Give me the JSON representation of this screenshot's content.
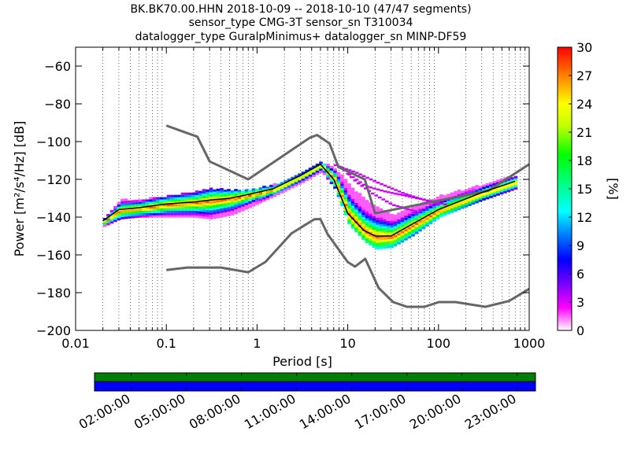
{
  "title": [
    "BK.BK70.00.HHN   2018-10-09 -- 2018-10-10  (47/47 segments)",
    "sensor_type CMG-3T sensor_sn T310034",
    "datalogger_type GuralpMinimus+ datalogger_sn MINP-DF59"
  ],
  "chart_data": {
    "type": "heatmap",
    "xlabel": "Period [s]",
    "ylabel": "Power [m²/s⁴/Hz] [dB]",
    "x_scale": "log",
    "xlim": [
      0.01,
      1000
    ],
    "ylim": [
      -200,
      -50
    ],
    "x_ticks": [
      0.01,
      0.1,
      1,
      10,
      100,
      1000
    ],
    "x_tick_labels": [
      "0.01",
      "0.1",
      "1",
      "10",
      "100",
      "1000"
    ],
    "y_ticks": [
      -200,
      -180,
      -160,
      -140,
      -120,
      -100,
      -80,
      -60
    ],
    "y_tick_labels": [
      "−200",
      "−180",
      "−160",
      "−140",
      "−120",
      "−100",
      "−80",
      "−60"
    ],
    "grid": "dotted vertical at log subdivisions",
    "colorbar": {
      "label": "[%]",
      "range": [
        0,
        30
      ],
      "ticks": [
        0,
        3,
        6,
        9,
        12,
        15,
        18,
        21,
        24,
        27,
        30
      ],
      "colors": [
        "#ffffff",
        "#ff00ff",
        "#8000ff",
        "#0000ff",
        "#0080ff",
        "#00ffff",
        "#00ff80",
        "#00ff00",
        "#c0ff00",
        "#ffff00",
        "#ff8000",
        "#ff0000"
      ]
    },
    "noise_model_high": {
      "period": [
        0.1,
        0.22,
        0.3,
        0.8,
        3.8,
        4.6,
        6.3,
        7.9,
        15.4,
        20,
        354.8,
        1000
      ],
      "power": [
        -91.5,
        -97.4,
        -110.5,
        -120,
        -98,
        -96.5,
        -101,
        -113.5,
        -120,
        -138,
        -126,
        -112
      ]
    },
    "noise_model_low": {
      "period": [
        0.1,
        0.17,
        0.4,
        0.8,
        1.24,
        2.4,
        4.3,
        5,
        6,
        10,
        12,
        15.6,
        21.9,
        31.6,
        45,
        70,
        101,
        154,
        328,
        600,
        1000
      ],
      "power": [
        -168,
        -166.7,
        -166.7,
        -169.2,
        -163.7,
        -148.6,
        -141.1,
        -141.1,
        -149,
        -163.8,
        -166.2,
        -162.1,
        -177.5,
        -185,
        -187.5,
        -187.5,
        -185,
        -185,
        -187.5,
        -184.4,
        -178
      ]
    },
    "mode_curve": {
      "period": [
        0.02,
        0.03,
        0.05,
        0.1,
        0.2,
        0.3,
        0.5,
        0.8,
        1.5,
        3,
        5,
        7,
        10,
        15,
        20,
        30,
        50,
        100,
        300,
        700
      ],
      "power": [
        -142,
        -136,
        -135,
        -133,
        -132,
        -131,
        -130,
        -128,
        -125,
        -118,
        -112,
        -120,
        -138,
        -147,
        -150,
        -150,
        -144,
        -136,
        -127,
        -121
      ]
    },
    "histogram_spread": {
      "period": [
        0.02,
        0.03,
        0.05,
        0.1,
        0.2,
        0.3,
        0.5,
        0.8,
        1.5,
        3,
        5,
        7,
        10,
        15,
        20,
        30,
        50,
        100,
        300,
        700
      ],
      "low": [
        -144,
        -140,
        -139,
        -139,
        -139,
        -140,
        -138,
        -134,
        -128,
        -121,
        -115,
        -124,
        -143,
        -152,
        -156,
        -155,
        -149,
        -139,
        -130,
        -124
      ],
      "high": [
        -140,
        -130,
        -130,
        -128,
        -126,
        -124,
        -125,
        -125,
        -122,
        -116,
        -110,
        -113,
        -122,
        -130,
        -134,
        -138,
        -134,
        -128,
        -122,
        -117
      ]
    },
    "magenta_tracks": [
      {
        "period": [
          7,
          12,
          20,
          40,
          100
        ],
        "power": [
          -112,
          -116,
          -121,
          -127,
          -133
        ]
      },
      {
        "period": [
          8,
          12,
          18,
          30,
          60
        ],
        "power": [
          -113,
          -121,
          -127,
          -133,
          -137
        ]
      },
      {
        "period": [
          10,
          15,
          25,
          50,
          120
        ],
        "power": [
          -117,
          -123,
          -126,
          -129,
          -133
        ]
      }
    ]
  },
  "timeline": {
    "labels": [
      "02:00:00",
      "05:00:00",
      "08:00:00",
      "11:00:00",
      "14:00:00",
      "17:00:00",
      "20:00:00",
      "23:00:00"
    ],
    "colors": {
      "top": "#008000",
      "bottom": "#0000ff"
    }
  },
  "colors": {
    "noise_model": "#666666",
    "mode": "#000000",
    "axis": "#000000"
  }
}
